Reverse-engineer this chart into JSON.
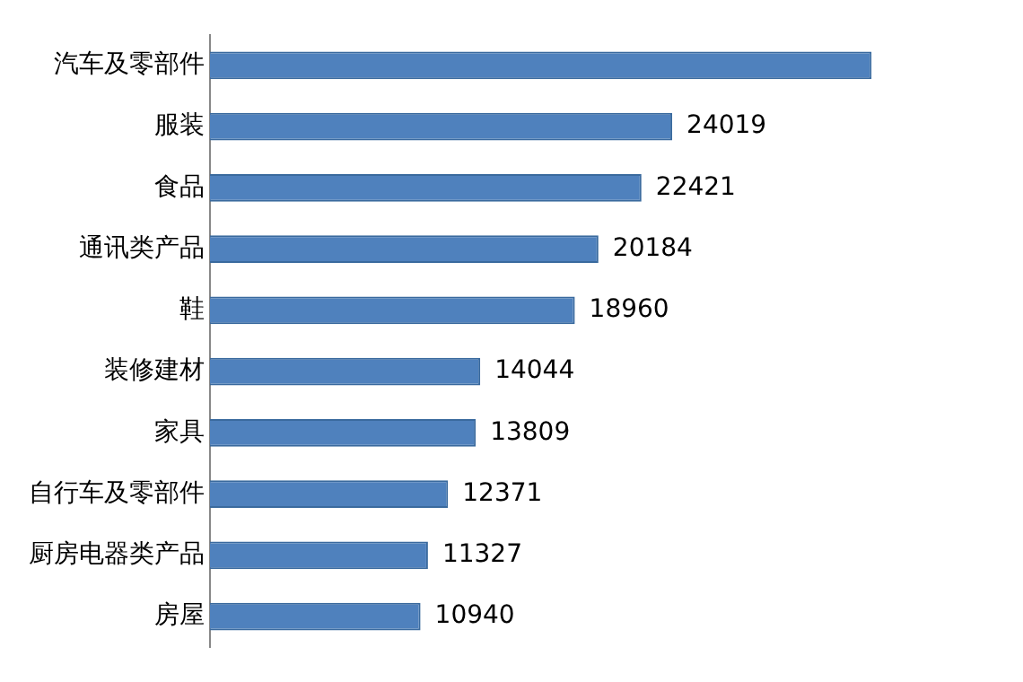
{
  "chart_data": {
    "type": "bar",
    "orientation": "horizontal",
    "categories": [
      "汽车及零部件",
      "服装",
      "食品",
      "通讯类产品",
      "鞋",
      "装修建材",
      "家具",
      "自行车及零部件",
      "厨房电器类产品",
      "房屋"
    ],
    "values": [
      34380,
      24019,
      22421,
      20184,
      18960,
      14044,
      13809,
      12371,
      11327,
      10940
    ],
    "value_labels": [
      null,
      "24019",
      "22421",
      "20184",
      "18960",
      "14044",
      "13809",
      "12371",
      "11327",
      "10940"
    ],
    "color": "#4f81bd"
  }
}
